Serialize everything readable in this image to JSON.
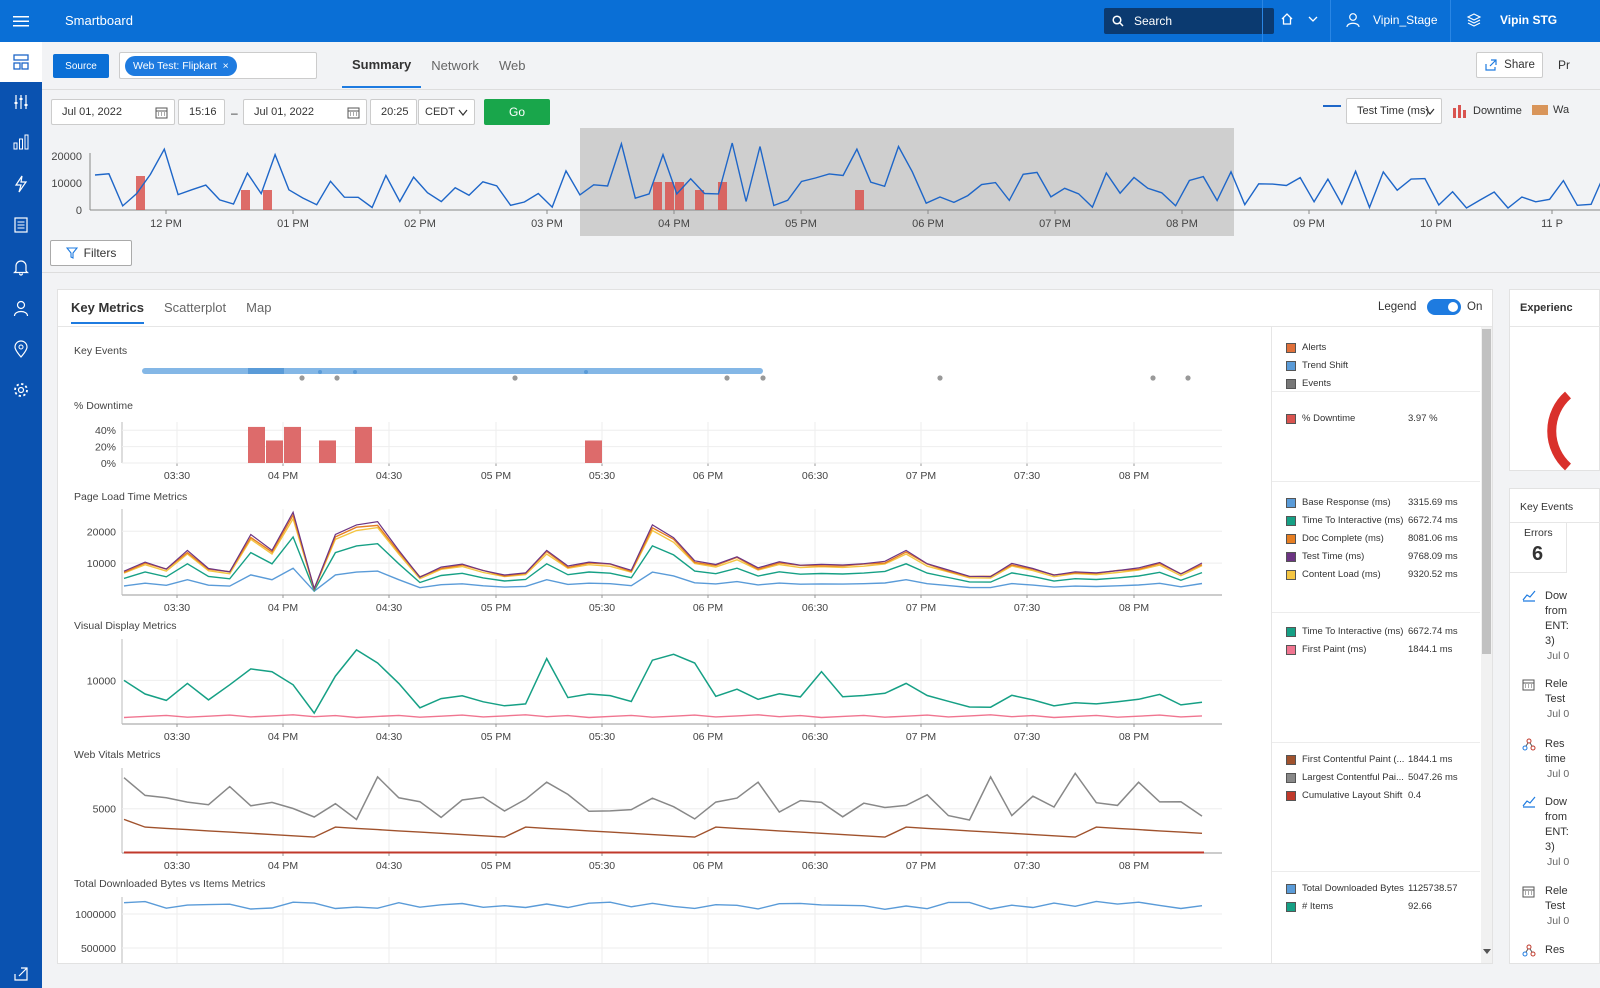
{
  "app": {
    "title": "Smartboard"
  },
  "topbar": {
    "search_label": "Search",
    "user": "Vipin_Stage",
    "org": "Vipin STG"
  },
  "header": {
    "source_label": "Source",
    "chip_label": "Web Test: Flipkart",
    "tabs": [
      "Summary",
      "Network",
      "Web"
    ],
    "share_label": "Share",
    "pr_label": "Pr"
  },
  "timeline": {
    "start_date": "Jul 01, 2022",
    "start_time": "15:16",
    "dash": "–",
    "end_date": "Jul 01, 2022",
    "end_time": "20:25",
    "timezone": "CEDT",
    "go_label": "Go",
    "metric_select": "Test Time (ms)",
    "legend_downtime": "Downtime",
    "legend_wa": "Wa"
  },
  "overview_chart": {
    "y_ticks": [
      "20000",
      "10000",
      "0"
    ],
    "x_ticks": [
      "12 PM",
      "01 PM",
      "02 PM",
      "03 PM",
      "04 PM",
      "05 PM",
      "06 PM",
      "07 PM",
      "08 PM",
      "09 PM",
      "10 PM",
      "11 P"
    ]
  },
  "filters_label": "Filters",
  "key_metrics": {
    "tabs": [
      "Key Metrics",
      "Scatterplot",
      "Map"
    ],
    "legend_label": "Legend",
    "legend_state": "On",
    "x_ticks": [
      "03:30",
      "04 PM",
      "04:30",
      "05 PM",
      "05:30",
      "06 PM",
      "06:30",
      "07 PM",
      "07:30",
      "08 PM"
    ],
    "sections": {
      "key_events": "Key Events",
      "downtime": "% Downtime",
      "page_load": "Page Load Time Metrics",
      "visual": "Visual Display Metrics",
      "vitals": "Web Vitals Metrics",
      "bytes": "Total Downloaded Bytes vs Items Metrics"
    },
    "downtime_ticks": [
      "40%",
      "20%",
      "0%"
    ],
    "page_load_ticks": [
      "20000",
      "10000"
    ],
    "visual_ticks": [
      "10000"
    ],
    "vitals_ticks": [
      "5000"
    ],
    "bytes_ticks": [
      "1000000",
      "500000"
    ]
  },
  "legend_groups": {
    "events": [
      {
        "name": "Alerts",
        "color": "#e0703a"
      },
      {
        "name": "Trend Shift",
        "color": "#5a9bd8"
      },
      {
        "name": "Events",
        "color": "#777777"
      }
    ],
    "downtime": [
      {
        "name": "% Downtime",
        "value": "3.97 %",
        "color": "#d9534f"
      }
    ],
    "page_load": [
      {
        "name": "Base Response (ms)",
        "value": "3315.69 ms",
        "color": "#5a9bd8"
      },
      {
        "name": "Time To Interactive (ms)",
        "value": "6672.74 ms",
        "color": "#16a085"
      },
      {
        "name": "Doc Complete (ms)",
        "value": "8081.06 ms",
        "color": "#e67e22"
      },
      {
        "name": "Test Time (ms)",
        "value": "9768.09 ms",
        "color": "#6c3483"
      },
      {
        "name": "Content Load (ms)",
        "value": "9320.52 ms",
        "color": "#f4c542"
      }
    ],
    "visual": [
      {
        "name": "Time To Interactive (ms)",
        "value": "6672.74 ms",
        "color": "#16a085"
      },
      {
        "name": "First Paint (ms)",
        "value": "1844.1 ms",
        "color": "#f07590"
      }
    ],
    "vitals": [
      {
        "name": "First Contentful Paint (...",
        "value": "1844.1 ms",
        "color": "#a0522d"
      },
      {
        "name": "Largest Contentful Pai...",
        "value": "5047.26 ms",
        "color": "#888888"
      },
      {
        "name": "Cumulative Layout Shift",
        "value": "0.4",
        "color": "#c0392b"
      }
    ],
    "bytes": [
      {
        "name": "Total Downloaded Bytes",
        "value": "1125738.57",
        "color": "#5a9bd8"
      },
      {
        "name": "# Items",
        "value": "92.66",
        "color": "#16a085"
      }
    ]
  },
  "right_panel": {
    "experience_title": "Experienc",
    "key_events_title": "Key Events",
    "errors_label": "Errors",
    "errors_count": "6",
    "items": [
      {
        "icon": "trend-icon",
        "lines": [
          "Dow",
          "from",
          "ENT:",
          "3)"
        ],
        "date": "Jul 0"
      },
      {
        "icon": "calendar-icon",
        "lines": [
          "Rele",
          "Test"
        ],
        "date": "Jul 0"
      },
      {
        "icon": "alert-icon",
        "lines": [
          "Res",
          "time"
        ],
        "date": "Jul 0"
      },
      {
        "icon": "trend-icon",
        "lines": [
          "Dow",
          "from",
          "ENT:",
          "3)"
        ],
        "date": "Jul 0"
      },
      {
        "icon": "calendar-icon",
        "lines": [
          "Rele",
          "Test"
        ],
        "date": "Jul 0"
      },
      {
        "icon": "alert-icon",
        "lines": [
          "Res"
        ],
        "date": ""
      }
    ]
  }
}
